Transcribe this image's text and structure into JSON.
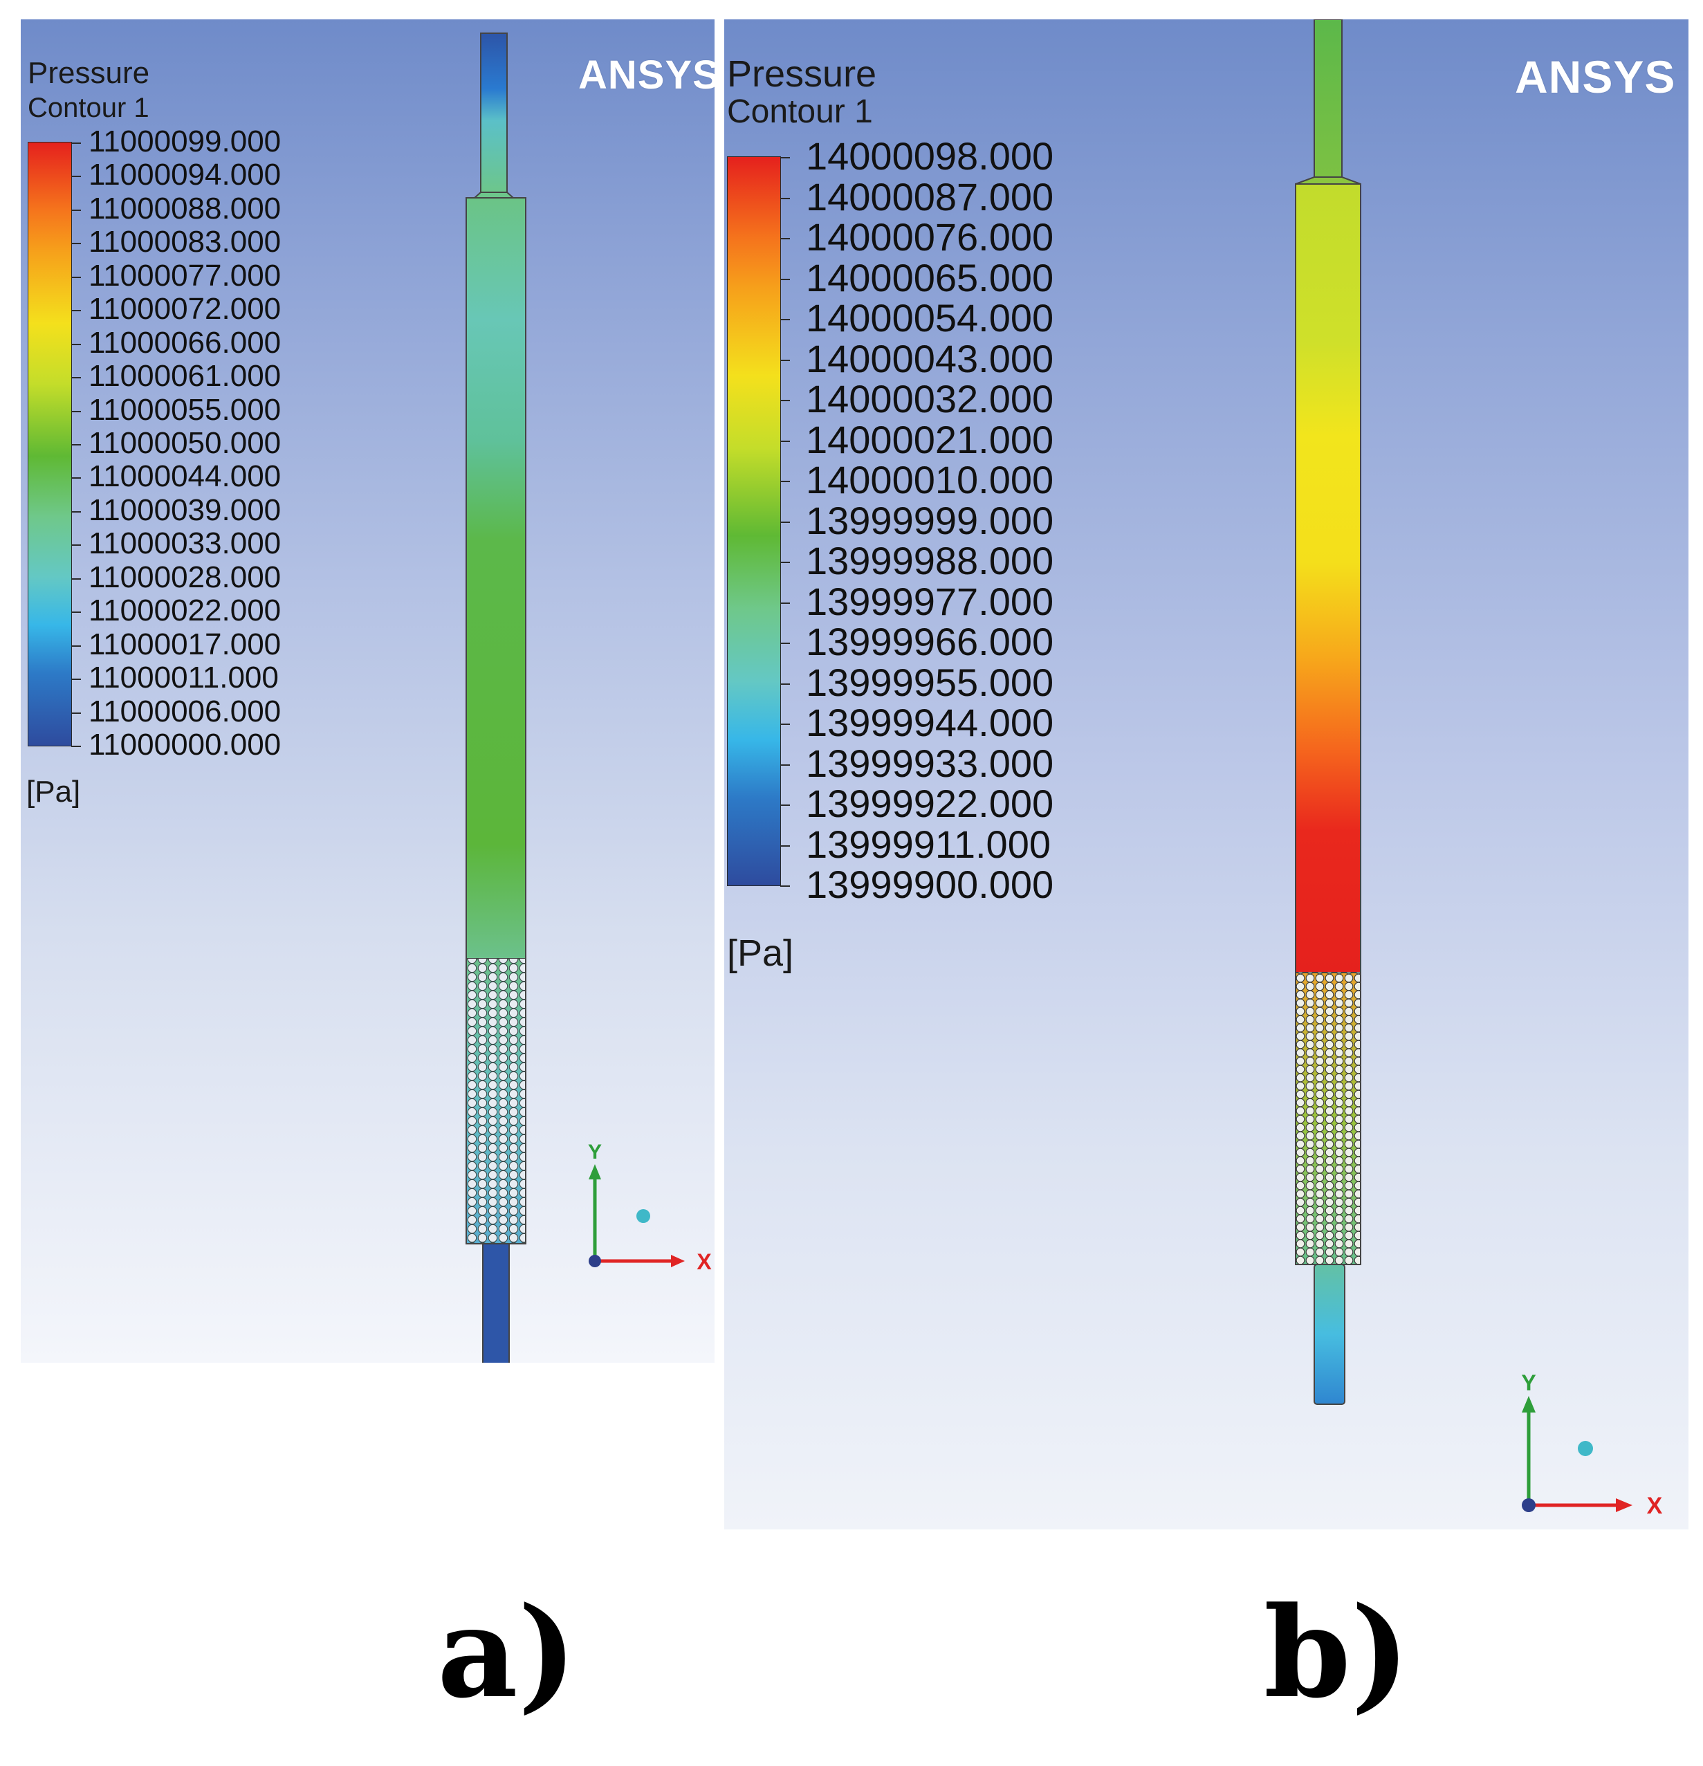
{
  "panel_a": {
    "title": "Pressure",
    "subtitle": "Contour 1",
    "logo": "ANSYS",
    "units": "[Pa]",
    "legend_labels": [
      "11000099.000",
      "11000094.000",
      "11000088.000",
      "11000083.000",
      "11000077.000",
      "11000072.000",
      "11000066.000",
      "11000061.000",
      "11000055.000",
      "11000050.000",
      "11000044.000",
      "11000039.000",
      "11000033.000",
      "11000028.000",
      "11000022.000",
      "11000017.000",
      "11000011.000",
      "11000006.000",
      "11000000.000"
    ],
    "axis": {
      "y": "Y",
      "x": "X"
    },
    "caption": "a)"
  },
  "panel_b": {
    "title": "Pressure",
    "subtitle": "Contour 1",
    "logo": "ANSYS",
    "units": "[Pa]",
    "legend_labels": [
      "14000098.000",
      "14000087.000",
      "14000076.000",
      "14000065.000",
      "14000054.000",
      "14000043.000",
      "14000032.000",
      "14000021.000",
      "14000010.000",
      "13999999.000",
      "13999988.000",
      "13999977.000",
      "13999966.000",
      "13999955.000",
      "13999944.000",
      "13999933.000",
      "13999922.000",
      "13999911.000",
      "13999900.000"
    ],
    "axis": {
      "y": "Y",
      "x": "X"
    },
    "caption": "b)"
  },
  "colors": {
    "red": "#e5211d",
    "orange": "#f6a01b",
    "yellow": "#f4e01c",
    "green": "#5fb934",
    "cyan": "#37b7e8",
    "blue": "#2e4b9e",
    "axis_y": "#2e9e3a",
    "axis_x": "#e02424",
    "axis_z": "#3fb8c8"
  }
}
